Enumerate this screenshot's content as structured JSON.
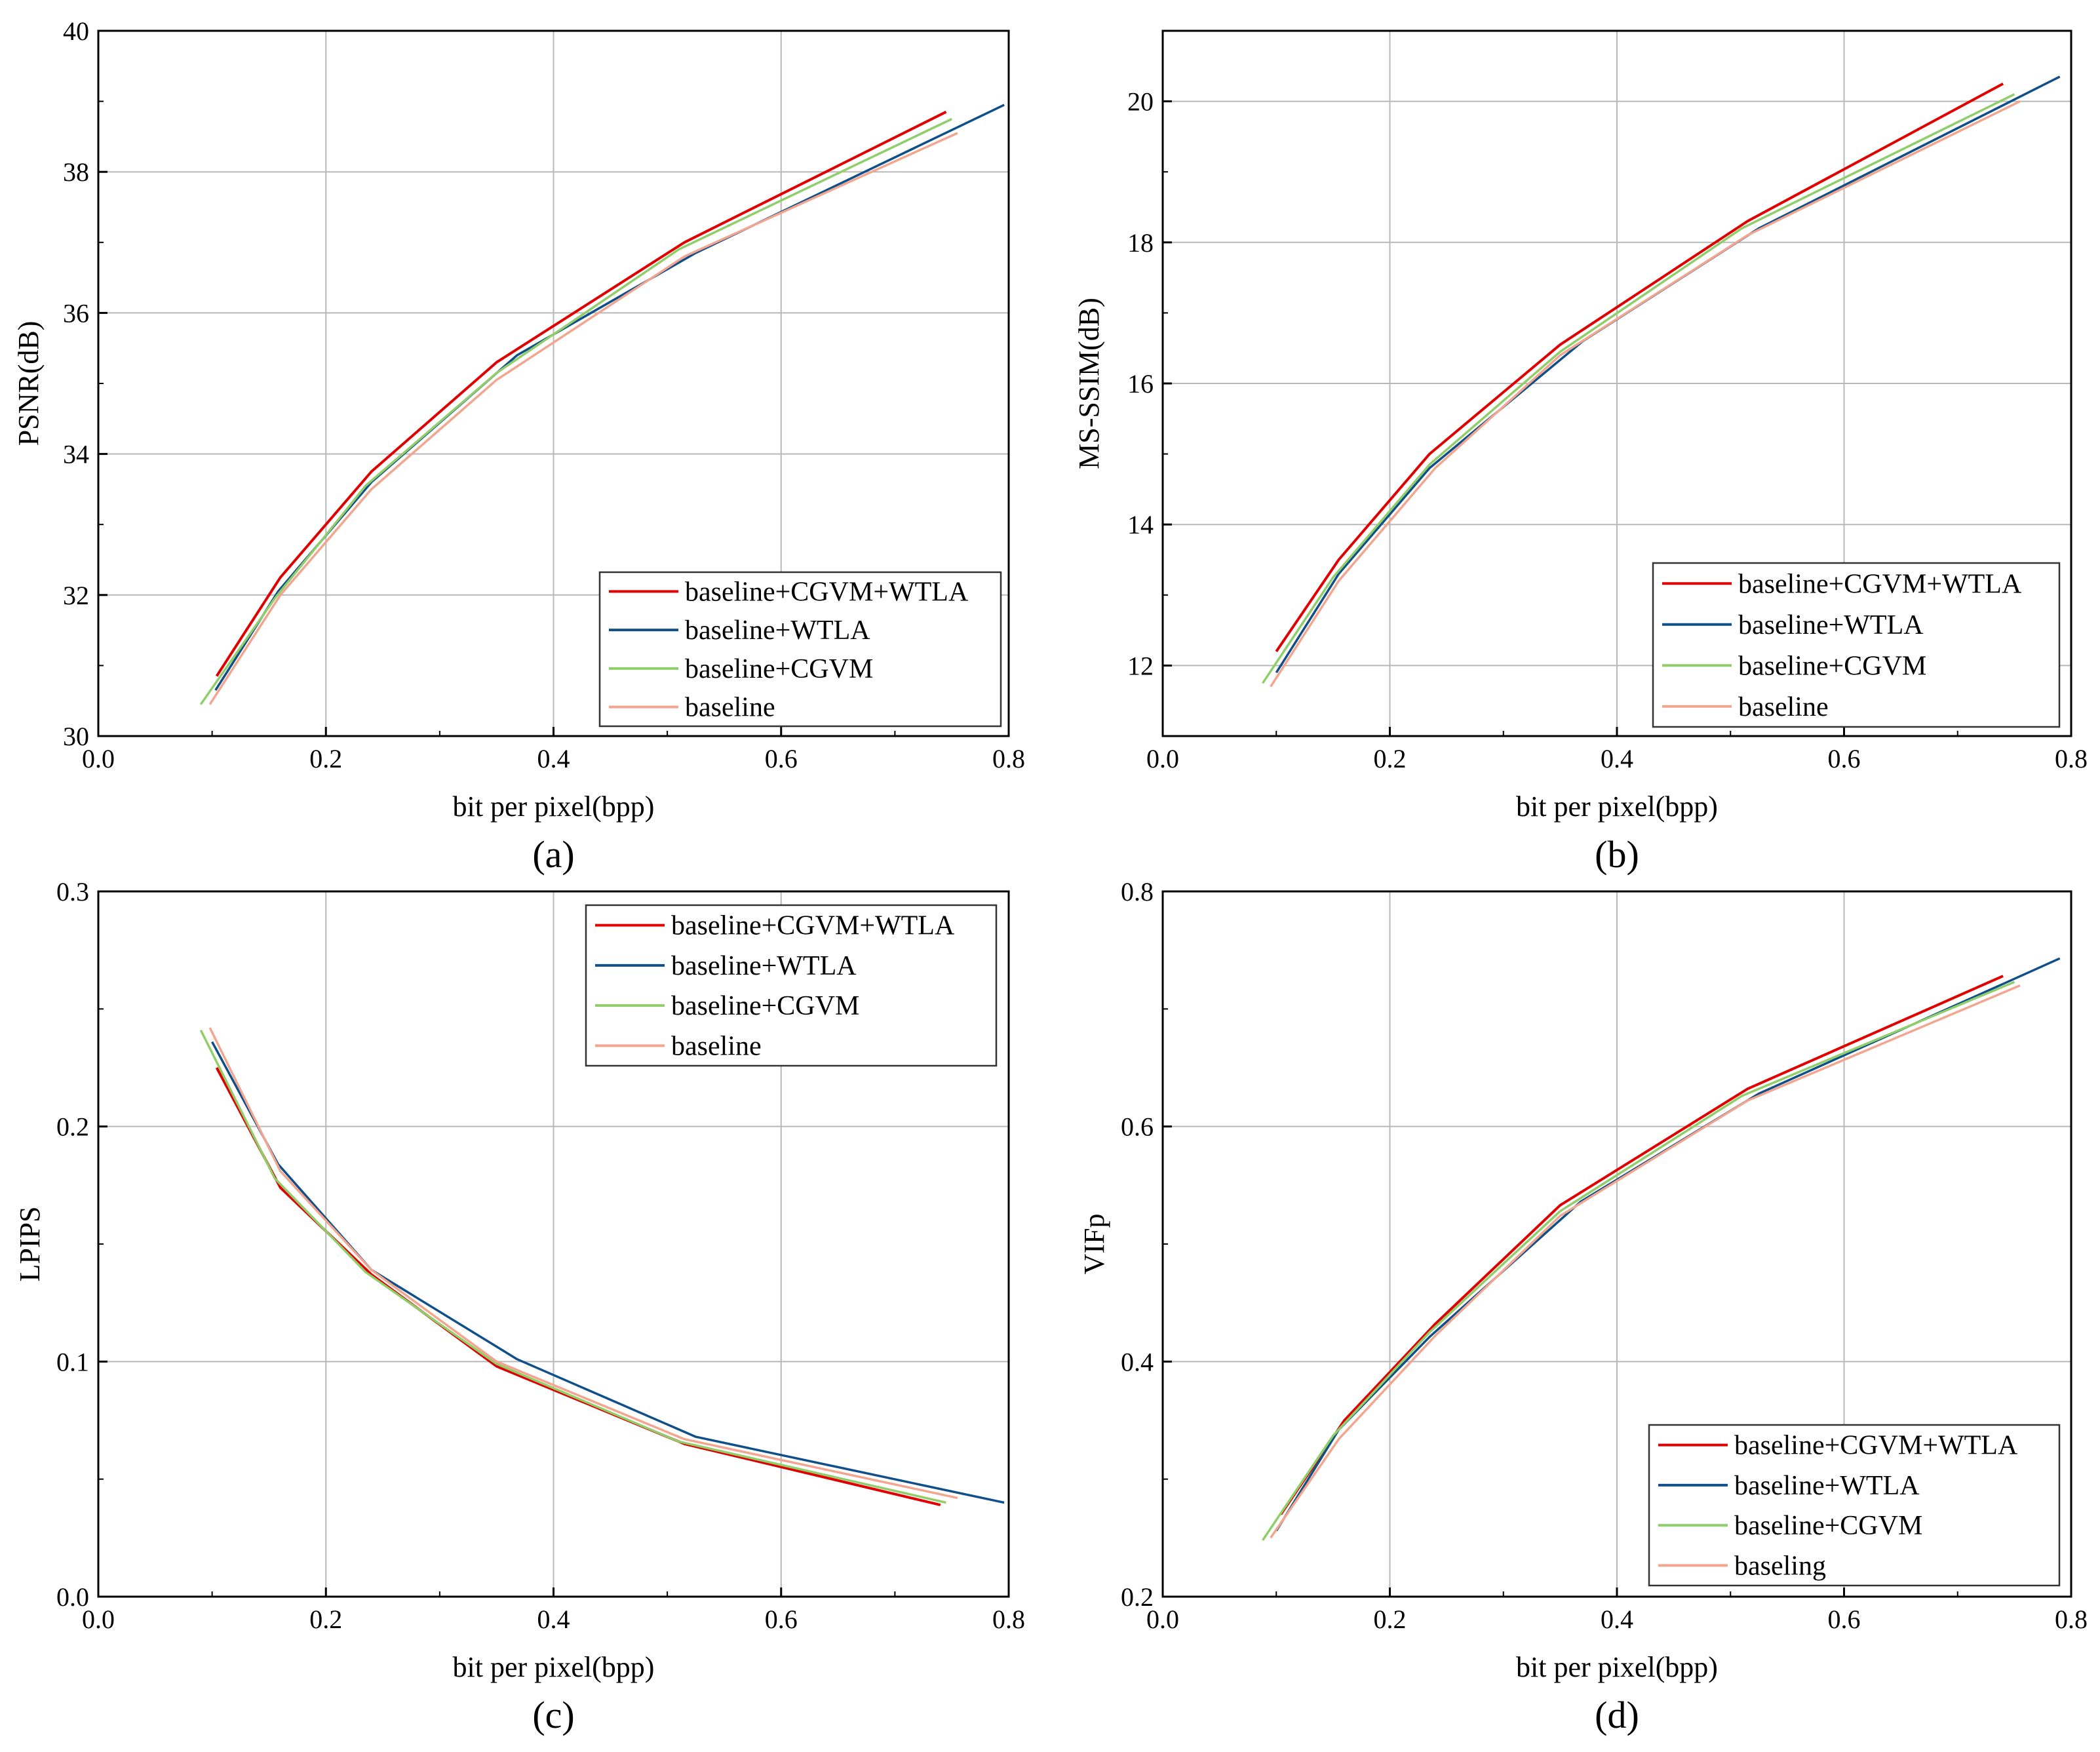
{
  "colors": {
    "baseline+CGVM+WTLA": "#e00000",
    "baseline+WTLA": "#0f4f8a",
    "baseline+CGVM": "#8fce6a",
    "baseline": "#f2a58f",
    "grid": "#b8b8b8",
    "axis": "#000000"
  },
  "chart_data": [
    {
      "type": "line",
      "panel_label": "(a)",
      "xlabel": "bit per pixel(bpp)",
      "ylabel": "PSNR(dB)",
      "xlim": [
        0.0,
        0.8
      ],
      "ylim": [
        30,
        40
      ],
      "xticks": [
        "0.0",
        "0.2",
        "0.4",
        "0.6",
        "0.8"
      ],
      "yticks": [
        "30",
        "32",
        "34",
        "36",
        "38",
        "40"
      ],
      "xtick_values": [
        0.0,
        0.2,
        0.4,
        0.6,
        0.8
      ],
      "ytick_values": [
        30,
        32,
        34,
        36,
        38,
        40
      ],
      "grid": true,
      "legend_position": "bottom-right",
      "series": [
        {
          "name": "baseline+CGVM+WTLA",
          "x": [
            0.104,
            0.16,
            0.24,
            0.35,
            0.515,
            0.745
          ],
          "y": [
            30.85,
            32.25,
            33.75,
            35.3,
            37.0,
            38.85
          ]
        },
        {
          "name": "baseline+WTLA",
          "x": [
            0.103,
            0.158,
            0.24,
            0.368,
            0.525,
            0.796
          ],
          "y": [
            30.65,
            32.05,
            33.6,
            35.4,
            36.85,
            38.95
          ]
        },
        {
          "name": "baseline+CGVM",
          "x": [
            0.09,
            0.155,
            0.235,
            0.35,
            0.51,
            0.75
          ],
          "y": [
            30.45,
            31.95,
            33.55,
            35.15,
            36.9,
            38.75
          ]
        },
        {
          "name": "baseline",
          "x": [
            0.098,
            0.16,
            0.24,
            0.35,
            0.515,
            0.755
          ],
          "y": [
            30.45,
            32.0,
            33.5,
            35.05,
            36.8,
            38.55
          ]
        }
      ]
    },
    {
      "type": "line",
      "panel_label": "(b)",
      "xlabel": "bit per pixel(bpp)",
      "ylabel": "MS-SSIM(dB)",
      "xlim": [
        0.0,
        0.8
      ],
      "ylim": [
        11,
        21
      ],
      "xticks": [
        "0.0",
        "0.2",
        "0.4",
        "0.6",
        "0.8"
      ],
      "yticks": [
        "12",
        "14",
        "16",
        "18",
        "20"
      ],
      "xtick_values": [
        0.0,
        0.2,
        0.4,
        0.6,
        0.8
      ],
      "ytick_values": [
        12,
        14,
        16,
        18,
        20
      ],
      "grid": true,
      "legend_position": "bottom-right",
      "series": [
        {
          "name": "baseline+CGVM+WTLA",
          "x": [
            0.1,
            0.155,
            0.235,
            0.35,
            0.515,
            0.74
          ],
          "y": [
            12.2,
            13.5,
            15.0,
            16.55,
            18.3,
            20.25
          ]
        },
        {
          "name": "baseline+WTLA",
          "x": [
            0.1,
            0.155,
            0.235,
            0.37,
            0.525,
            0.79
          ],
          "y": [
            11.9,
            13.3,
            14.8,
            16.6,
            18.2,
            20.35
          ]
        },
        {
          "name": "baseline+CGVM",
          "x": [
            0.088,
            0.15,
            0.235,
            0.35,
            0.51,
            0.75
          ],
          "y": [
            11.75,
            13.25,
            14.85,
            16.45,
            18.2,
            20.1
          ]
        },
        {
          "name": "baseline",
          "x": [
            0.095,
            0.155,
            0.24,
            0.35,
            0.515,
            0.755
          ],
          "y": [
            11.7,
            13.2,
            14.8,
            16.4,
            18.1,
            20.0
          ]
        }
      ]
    },
    {
      "type": "line",
      "panel_label": "(c)",
      "xlabel": "bit per pixel(bpp)",
      "ylabel": "LPIPS",
      "xlim": [
        0.0,
        0.8
      ],
      "ylim": [
        0.0,
        0.3
      ],
      "xticks": [
        "0.0",
        "0.2",
        "0.4",
        "0.6",
        "0.8"
      ],
      "yticks": [
        "0.0",
        "0.1",
        "0.2",
        "0.3"
      ],
      "xtick_values": [
        0.0,
        0.2,
        0.4,
        0.6,
        0.8
      ],
      "ytick_values": [
        0.0,
        0.1,
        0.2,
        0.3
      ],
      "grid": true,
      "legend_position": "top-right",
      "series": [
        {
          "name": "baseline+CGVM+WTLA",
          "x": [
            0.104,
            0.16,
            0.24,
            0.35,
            0.515,
            0.74
          ],
          "y": [
            0.225,
            0.174,
            0.137,
            0.098,
            0.065,
            0.039
          ]
        },
        {
          "name": "baseline+WTLA",
          "x": [
            0.1,
            0.158,
            0.24,
            0.368,
            0.525,
            0.796
          ],
          "y": [
            0.236,
            0.184,
            0.139,
            0.101,
            0.068,
            0.04
          ]
        },
        {
          "name": "baseline+CGVM",
          "x": [
            0.09,
            0.155,
            0.235,
            0.35,
            0.51,
            0.745
          ],
          "y": [
            0.241,
            0.178,
            0.138,
            0.099,
            0.066,
            0.04
          ]
        },
        {
          "name": "baseline",
          "x": [
            0.098,
            0.16,
            0.24,
            0.35,
            0.515,
            0.755
          ],
          "y": [
            0.242,
            0.181,
            0.139,
            0.1,
            0.067,
            0.042
          ]
        }
      ]
    },
    {
      "type": "line",
      "panel_label": "(d)",
      "xlabel": "bit per pixel(bpp)",
      "ylabel": "VIFp",
      "xlim": [
        0.0,
        0.8
      ],
      "ylim": [
        0.2,
        0.8
      ],
      "xticks": [
        "0.0",
        "0.2",
        "0.4",
        "0.6",
        "0.8"
      ],
      "yticks": [
        "0.2",
        "0.4",
        "0.6",
        "0.8"
      ],
      "xtick_values": [
        0.0,
        0.2,
        0.4,
        0.6,
        0.8
      ],
      "ytick_values": [
        0.2,
        0.4,
        0.6,
        0.8
      ],
      "grid": true,
      "legend_position": "bottom-right",
      "series": [
        {
          "name": "baseline+CGVM+WTLA",
          "x": [
            0.104,
            0.16,
            0.24,
            0.35,
            0.515,
            0.74
          ],
          "y": [
            0.27,
            0.35,
            0.432,
            0.533,
            0.632,
            0.728
          ]
        },
        {
          "name": "baseline+WTLA",
          "x": [
            0.1,
            0.155,
            0.235,
            0.368,
            0.525,
            0.79
          ],
          "y": [
            0.256,
            0.342,
            0.421,
            0.536,
            0.628,
            0.743
          ]
        },
        {
          "name": "baseline+CGVM",
          "x": [
            0.088,
            0.15,
            0.235,
            0.35,
            0.51,
            0.75
          ],
          "y": [
            0.248,
            0.337,
            0.425,
            0.528,
            0.626,
            0.723
          ]
        },
        {
          "name": "baseling",
          "x": [
            0.095,
            0.155,
            0.24,
            0.35,
            0.515,
            0.755
          ],
          "y": [
            0.25,
            0.334,
            0.422,
            0.524,
            0.622,
            0.72
          ]
        }
      ]
    }
  ]
}
